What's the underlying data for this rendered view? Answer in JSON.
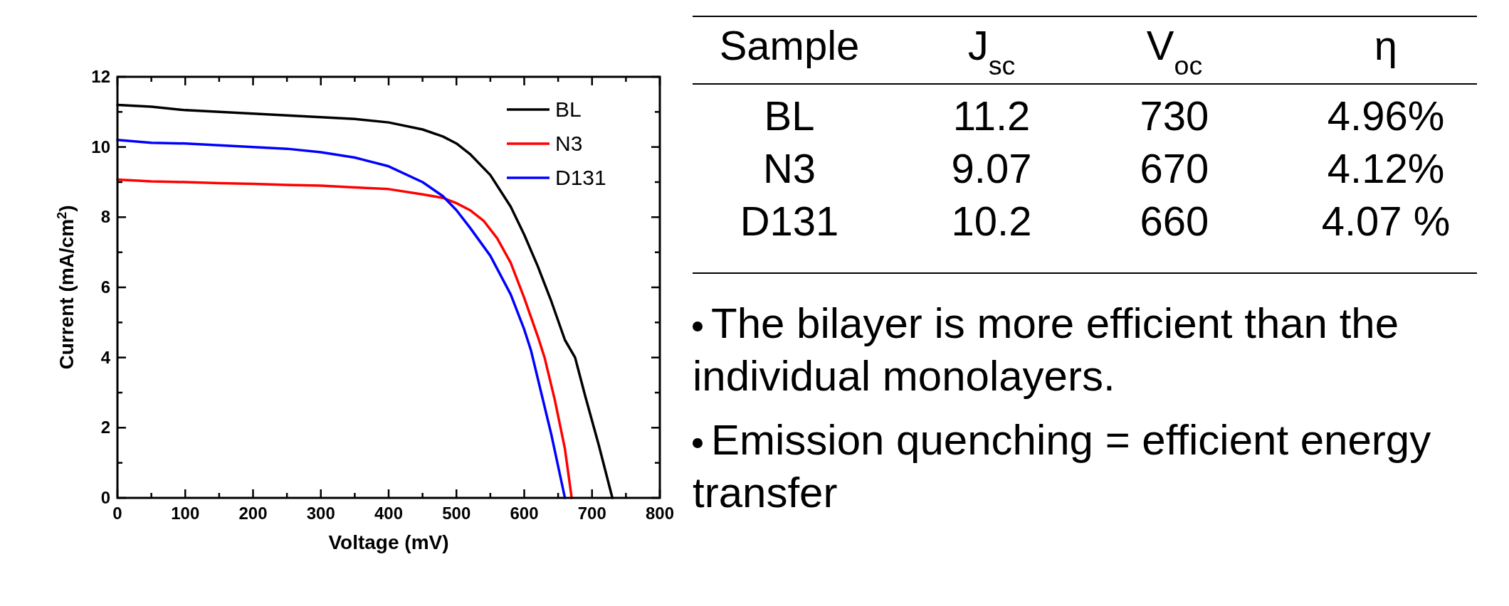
{
  "chart_data": [
    {
      "type": "line",
      "xlabel": "Voltage (mV)",
      "ylabel": "Current (mA/cm$^{2}$)",
      "xlim": [
        0,
        800
      ],
      "ylim": [
        0,
        12
      ],
      "xticks": [
        0,
        {
          "value": 50,
          "label": null
        },
        100,
        {
          "value": 150,
          "label": null
        },
        200,
        {
          "value": 250,
          "label": null
        },
        300,
        {
          "value": 350,
          "label": null
        },
        400,
        {
          "value": 450,
          "label": null
        },
        500,
        {
          "value": 550,
          "label": null
        },
        600,
        {
          "value": 650,
          "label": null
        },
        700,
        {
          "value": 750,
          "label": null
        },
        800
      ],
      "yticks": [
        0,
        {
          "value": 1,
          "label": null
        },
        2,
        {
          "value": 3,
          "label": null
        },
        4,
        {
          "value": 5,
          "label": null
        },
        6,
        {
          "value": 7,
          "label": null
        },
        8,
        {
          "value": 9,
          "label": null
        },
        10,
        {
          "value": 11,
          "label": null
        },
        12
      ],
      "legend": "top right",
      "grid": false,
      "series": [
        {
          "name": "BL",
          "color": "#000000",
          "x": [
            0,
            50,
            100,
            150,
            200,
            250,
            300,
            350,
            400,
            450,
            480,
            500,
            520,
            550,
            580,
            600,
            620,
            640,
            660,
            675,
            690,
            710,
            730
          ],
          "values": [
            11.2,
            11.15,
            11.05,
            11.0,
            10.95,
            10.9,
            10.85,
            10.8,
            10.7,
            10.5,
            10.3,
            10.1,
            9.8,
            9.2,
            8.3,
            7.5,
            6.6,
            5.6,
            4.5,
            4.0,
            2.9,
            1.5,
            0
          ]
        },
        {
          "name": "N3",
          "color": "#ff0000",
          "x": [
            0,
            50,
            100,
            150,
            200,
            250,
            300,
            350,
            400,
            450,
            480,
            500,
            520,
            540,
            560,
            580,
            600,
            620,
            630,
            645,
            660,
            670
          ],
          "values": [
            9.07,
            9.02,
            9.0,
            8.97,
            8.95,
            8.92,
            8.9,
            8.85,
            8.8,
            8.65,
            8.55,
            8.4,
            8.2,
            7.9,
            7.4,
            6.7,
            5.7,
            4.6,
            4.0,
            2.8,
            1.4,
            0
          ]
        },
        {
          "name": "D131",
          "color": "#0000ff",
          "x": [
            0,
            50,
            100,
            150,
            200,
            250,
            300,
            350,
            400,
            450,
            480,
            500,
            520,
            550,
            580,
            600,
            610,
            625,
            640,
            660
          ],
          "values": [
            10.2,
            10.12,
            10.1,
            10.05,
            10.0,
            9.95,
            9.85,
            9.7,
            9.45,
            9.0,
            8.6,
            8.2,
            7.7,
            6.9,
            5.8,
            4.8,
            4.2,
            3.0,
            1.8,
            0
          ]
        }
      ]
    },
    {
      "type": "other",
      "categories": [
        "Sample",
        "J$_{sc}$",
        "V$_{oc}$",
        "η"
      ],
      "cell_labels": [
        [
          "BL",
          "11.2",
          "730",
          "4.96%"
        ],
        [
          "N3",
          "9.07",
          "670",
          "4.12%"
        ],
        [
          "D131",
          "10.2",
          "660",
          "4.07 %"
        ]
      ],
      "annotations": [
        "The bilayer is more efficient than the individual monolayers.",
        "Emission quenching = efficient energy transfer"
      ]
    }
  ]
}
